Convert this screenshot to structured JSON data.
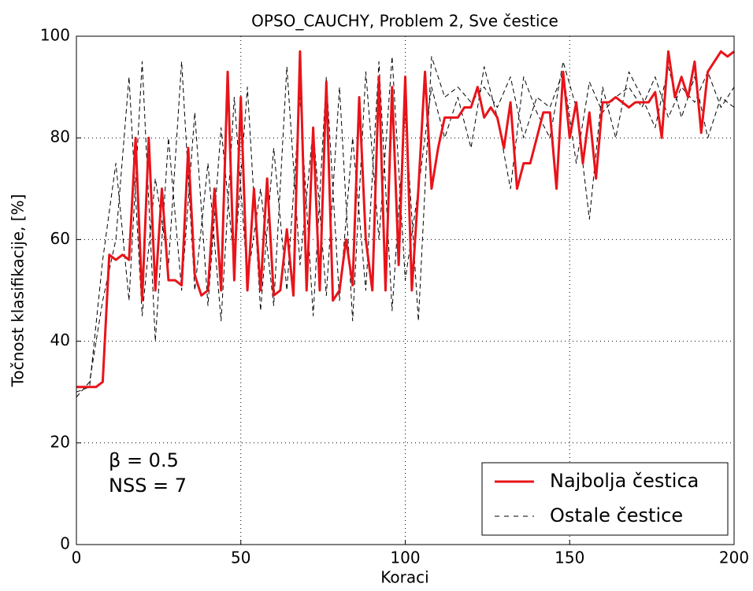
{
  "chart_data": {
    "type": "line",
    "title": "OPSO_CAUCHY, Problem 2, Sve čestice",
    "x_label": "Koraci",
    "y_label": "Točnost klasifikacije, [%]",
    "annotations": [
      "β = 0.5",
      "NSS = 7"
    ],
    "x": [
      0,
      2,
      4,
      6,
      8,
      10,
      12,
      14,
      16,
      18,
      20,
      22,
      24,
      26,
      28,
      30,
      32,
      34,
      36,
      38,
      40,
      42,
      44,
      46,
      48,
      50,
      52,
      54,
      56,
      58,
      60,
      62,
      64,
      66,
      68,
      70,
      72,
      74,
      76,
      78,
      80,
      82,
      84,
      86,
      88,
      90,
      92,
      94,
      96,
      98,
      100,
      102,
      104,
      106,
      108,
      110,
      112,
      114,
      116,
      118,
      120,
      122,
      124,
      126,
      128,
      130,
      132,
      134,
      136,
      138,
      140,
      142,
      144,
      146,
      148,
      150,
      152,
      154,
      156,
      158,
      160,
      162,
      164,
      166,
      168,
      170,
      172,
      174,
      176,
      178,
      180,
      182,
      184,
      186,
      188,
      190,
      192,
      194,
      196,
      198,
      200
    ],
    "series": [
      {
        "name": "Ostale čestice",
        "color": "#000000",
        "dashed": true,
        "x": [
          0,
          4,
          8,
          12,
          16,
          20,
          24,
          28,
          32,
          36,
          40,
          44,
          48,
          52,
          56,
          60,
          64,
          68,
          72,
          76,
          80,
          84,
          88,
          92,
          96,
          100,
          104,
          108,
          112,
          116,
          120,
          124,
          128,
          132,
          136,
          140,
          144,
          148,
          152,
          156,
          160,
          164,
          168,
          172,
          176,
          180,
          184,
          188,
          192,
          196,
          200
        ],
        "values": [
          30,
          31,
          56,
          75,
          48,
          95,
          40,
          80,
          50,
          85,
          47,
          82,
          55,
          90,
          46,
          78,
          50,
          88,
          45,
          92,
          48,
          80,
          50,
          95,
          46,
          85,
          44,
          96,
          88,
          90,
          87,
          90,
          86,
          92,
          80,
          88,
          86,
          93,
          75,
          91,
          85,
          88,
          90,
          86,
          92,
          84,
          90,
          87,
          93,
          86,
          90
        ]
      },
      {
        "color": "#000000",
        "dashed": true,
        "x": [
          0,
          4,
          8,
          12,
          16,
          20,
          24,
          28,
          32,
          36,
          40,
          44,
          48,
          52,
          56,
          60,
          64,
          68,
          72,
          76,
          80,
          84,
          88,
          92,
          96,
          100,
          104,
          108,
          112,
          116,
          120,
          124,
          128,
          132,
          136,
          140,
          144,
          148,
          152,
          156,
          160,
          164,
          168,
          172,
          176,
          180,
          184,
          188,
          192,
          196,
          200
        ],
        "values": [
          29,
          32,
          48,
          60,
          92,
          45,
          72,
          55,
          95,
          50,
          75,
          44,
          88,
          52,
          70,
          47,
          94,
          55,
          82,
          49,
          90,
          44,
          93,
          60,
          96,
          52,
          70,
          90,
          80,
          88,
          78,
          94,
          84,
          70,
          92,
          85,
          80,
          95,
          86,
          64,
          90,
          80,
          93,
          88,
          82,
          94,
          84,
          92,
          80,
          88,
          86
        ]
      },
      {
        "name": "Najbolja čestica",
        "color": "#e8141a",
        "dashed": false,
        "values": [
          31,
          31,
          31,
          31,
          32,
          57,
          56,
          57,
          56,
          80,
          48,
          80,
          50,
          70,
          52,
          52,
          51,
          78,
          53,
          49,
          50,
          70,
          50,
          93,
          52,
          88,
          50,
          70,
          50,
          72,
          49,
          50,
          62,
          49,
          97,
          50,
          82,
          50,
          91,
          48,
          50,
          60,
          51,
          88,
          60,
          50,
          92,
          50,
          90,
          55,
          92,
          50,
          70,
          93,
          70,
          78,
          84,
          84,
          84,
          86,
          86,
          90,
          84,
          86,
          84,
          78,
          87,
          70,
          75,
          75,
          80,
          85,
          85,
          70,
          93,
          80,
          87,
          75,
          85,
          72,
          87,
          87,
          88,
          87,
          86,
          87,
          87,
          87,
          89,
          80,
          97,
          88,
          92,
          88,
          95,
          81,
          93,
          95,
          97,
          96,
          97
        ]
      }
    ],
    "xlim": [
      0,
      200
    ],
    "xticks": [
      0,
      50,
      100,
      150,
      200
    ],
    "ylim": [
      0,
      100
    ],
    "yticks": [
      0,
      20,
      40,
      60,
      80,
      100
    ],
    "grid": true,
    "legend": "lower right"
  }
}
